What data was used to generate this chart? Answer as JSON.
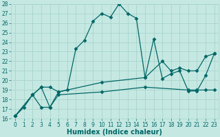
{
  "xlabel": "Humidex (Indice chaleur)",
  "xlim": [
    -0.5,
    23.5
  ],
  "ylim": [
    16,
    28
  ],
  "yticks": [
    16,
    17,
    18,
    19,
    20,
    21,
    22,
    23,
    24,
    25,
    26,
    27,
    28
  ],
  "xticks": [
    0,
    1,
    2,
    3,
    4,
    5,
    6,
    7,
    8,
    9,
    10,
    11,
    12,
    13,
    14,
    15,
    16,
    17,
    18,
    19,
    20,
    21,
    22,
    23
  ],
  "background_color": "#c5e8e2",
  "grid_color": "#a8d4cc",
  "line_color": "#006666",
  "line1_x": [
    0,
    1,
    2,
    3,
    4,
    5,
    6,
    7,
    8,
    9,
    10,
    11,
    12,
    13,
    14,
    15,
    16,
    17,
    18,
    19,
    20,
    21,
    22,
    23
  ],
  "line1_y": [
    16.3,
    17.2,
    18.5,
    19.3,
    17.2,
    18.8,
    19.0,
    23.3,
    24.2,
    26.2,
    27.0,
    26.6,
    28.0,
    27.0,
    26.5,
    20.3,
    24.3,
    20.2,
    20.7,
    21.0,
    18.9,
    18.9,
    20.5,
    22.8
  ],
  "line2_x": [
    0,
    2,
    3,
    4,
    5,
    10,
    15,
    17,
    18,
    19,
    20,
    21,
    22,
    23
  ],
  "line2_y": [
    16.3,
    18.5,
    19.3,
    19.3,
    18.8,
    19.8,
    20.3,
    22.0,
    21.0,
    21.3,
    21.0,
    21.0,
    22.5,
    22.8
  ],
  "line3_x": [
    0,
    2,
    3,
    4,
    5,
    10,
    15,
    20,
    21,
    22,
    23
  ],
  "line3_y": [
    16.3,
    18.5,
    17.2,
    17.2,
    18.5,
    18.8,
    19.3,
    19.0,
    19.0,
    19.0,
    19.0
  ],
  "tick_fontsize": 5.5,
  "xlabel_fontsize": 7
}
